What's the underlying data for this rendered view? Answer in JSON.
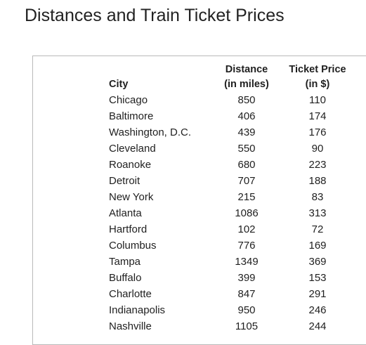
{
  "title": "Distances and Train Ticket Prices",
  "table": {
    "headers": {
      "city": "City",
      "distance_line1": "Distance",
      "distance_line2": "(in miles)",
      "price_line1": "Ticket Price",
      "price_line2": "(in $)"
    },
    "rows": [
      {
        "city": "Chicago",
        "distance": "850",
        "price": "110"
      },
      {
        "city": "Baltimore",
        "distance": "406",
        "price": "174"
      },
      {
        "city": "Washington, D.C.",
        "distance": "439",
        "price": "176"
      },
      {
        "city": "Cleveland",
        "distance": "550",
        "price": "90"
      },
      {
        "city": "Roanoke",
        "distance": "680",
        "price": "223"
      },
      {
        "city": "Detroit",
        "distance": "707",
        "price": "188"
      },
      {
        "city": "New York",
        "distance": "215",
        "price": "83"
      },
      {
        "city": "Atlanta",
        "distance": "1086",
        "price": "313"
      },
      {
        "city": "Hartford",
        "distance": "102",
        "price": "72"
      },
      {
        "city": "Columbus",
        "distance": "776",
        "price": "169"
      },
      {
        "city": "Tampa",
        "distance": "1349",
        "price": "369"
      },
      {
        "city": "Buffalo",
        "distance": "399",
        "price": "153"
      },
      {
        "city": "Charlotte",
        "distance": "847",
        "price": "291"
      },
      {
        "city": "Indianapolis",
        "distance": "950",
        "price": "246"
      },
      {
        "city": "Nashville",
        "distance": "1105",
        "price": "244"
      }
    ]
  }
}
